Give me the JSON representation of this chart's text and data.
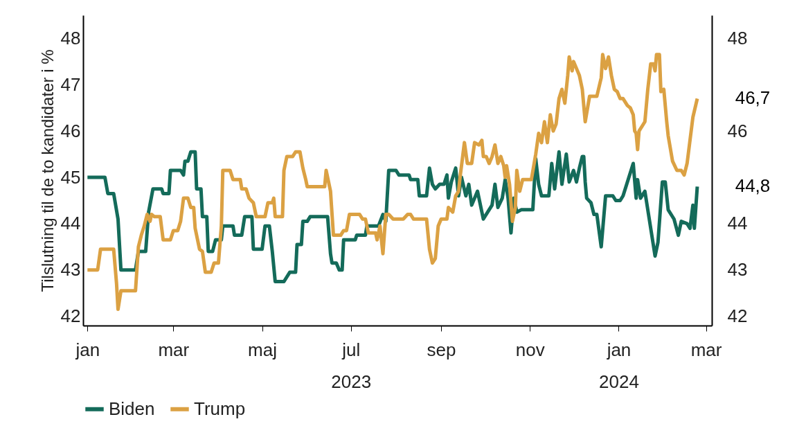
{
  "chart_data": {
    "type": "line",
    "ylabel": "Tilslutning til de to kandidater i %",
    "xlim": [
      "2022-12-29",
      "2024-03-05"
    ],
    "xticks": [
      {
        "value": "2023-01-01",
        "label": "jan"
      },
      {
        "value": "2023-03-01",
        "label": "mar"
      },
      {
        "value": "2023-05-01",
        "label": "maj"
      },
      {
        "value": "2023-07-01",
        "label": "jul\n2023"
      },
      {
        "value": "2023-09-01",
        "label": "sep"
      },
      {
        "value": "2023-11-01",
        "label": "nov"
      },
      {
        "value": "2024-01-01",
        "label": "jan\n2024"
      },
      {
        "value": "2024-03-01",
        "label": "mar"
      }
    ],
    "ylim": [
      41.8,
      48.5
    ],
    "yticks": [
      42,
      43,
      44,
      45,
      46,
      47,
      48
    ],
    "y2lim": [
      41.8,
      48.5
    ],
    "y2ticks": [
      42,
      43,
      44,
      46,
      48
    ],
    "legend": "bottom",
    "line_style": "solid",
    "marker": "none",
    "annotations": [
      {
        "text": "46,7",
        "x": "2024-02-24",
        "y": 46.7
      },
      {
        "text": "44,8",
        "x": "2024-02-24",
        "y": 44.8
      }
    ],
    "series": [
      {
        "name": "Biden",
        "color": "#146b5a",
        "x": [
          "2023-01-01",
          "2023-01-13",
          "2023-01-15",
          "2023-01-19",
          "2023-01-22",
          "2023-01-24",
          "2023-02-03",
          "2023-02-05",
          "2023-02-10",
          "2023-02-12",
          "2023-02-15",
          "2023-02-21",
          "2023-02-22",
          "2023-02-26",
          "2023-02-27",
          "2023-03-06",
          "2023-03-08",
          "2023-03-09",
          "2023-03-11",
          "2023-03-13",
          "2023-03-16",
          "2023-03-17",
          "2023-03-20",
          "2023-03-21",
          "2023-03-24",
          "2023-03-25",
          "2023-03-28",
          "2023-03-30",
          "2023-04-03",
          "2023-04-04",
          "2023-04-11",
          "2023-04-12",
          "2023-04-17",
          "2023-04-19",
          "2023-04-24",
          "2023-04-25",
          "2023-05-01",
          "2023-05-03",
          "2023-05-06",
          "2023-05-08",
          "2023-05-10",
          "2023-05-16",
          "2023-05-18",
          "2023-05-20",
          "2023-05-24",
          "2023-05-25",
          "2023-05-28",
          "2023-05-29",
          "2023-06-01",
          "2023-06-03",
          "2023-06-15",
          "2023-06-17",
          "2023-06-18",
          "2023-06-21",
          "2023-06-23",
          "2023-06-25",
          "2023-06-26",
          "2023-07-04",
          "2023-07-05",
          "2023-07-11",
          "2023-07-12",
          "2023-07-20",
          "2023-07-23",
          "2023-07-25",
          "2023-07-27",
          "2023-08-01",
          "2023-08-03",
          "2023-08-10",
          "2023-08-11",
          "2023-08-16",
          "2023-08-17",
          "2023-08-22",
          "2023-08-24",
          "2023-08-26",
          "2023-08-28",
          "2023-08-31",
          "2023-09-03",
          "2023-09-05",
          "2023-09-06",
          "2023-09-08",
          "2023-09-11",
          "2023-09-13",
          "2023-09-15",
          "2023-09-18",
          "2023-09-20",
          "2023-09-22",
          "2023-09-26",
          "2023-09-30",
          "2023-10-03",
          "2023-10-06",
          "2023-10-08",
          "2023-10-10",
          "2023-10-13",
          "2023-10-15",
          "2023-10-17",
          "2023-10-19",
          "2023-10-21",
          "2023-10-23",
          "2023-10-26",
          "2023-11-03",
          "2023-11-05",
          "2023-11-07",
          "2023-11-09",
          "2023-11-14",
          "2023-11-16",
          "2023-11-18",
          "2023-11-21",
          "2023-11-23",
          "2023-11-26",
          "2023-11-28",
          "2023-12-01",
          "2023-12-03",
          "2023-12-05",
          "2023-12-07",
          "2023-12-08",
          "2023-12-09",
          "2023-12-10",
          "2023-12-13",
          "2023-12-15",
          "2023-12-17",
          "2023-12-20",
          "2023-12-23",
          "2023-12-28",
          "2023-12-30",
          "2024-01-02",
          "2024-01-04",
          "2024-01-11",
          "2024-01-13",
          "2024-01-14",
          "2024-01-16",
          "2024-01-19",
          "2024-01-22",
          "2024-01-26",
          "2024-01-28",
          "2024-01-31",
          "2024-02-02",
          "2024-02-04",
          "2024-02-08",
          "2024-02-11",
          "2024-02-13",
          "2024-02-17",
          "2024-02-19",
          "2024-02-21",
          "2024-02-22",
          "2024-02-23",
          "2024-02-24"
        ],
        "values": [
          45.0,
          45.0,
          44.65,
          44.65,
          44.1,
          43.0,
          43.0,
          43.4,
          43.4,
          44.25,
          44.75,
          44.75,
          44.65,
          44.65,
          45.15,
          45.15,
          45.05,
          45.35,
          45.35,
          45.55,
          45.55,
          44.75,
          44.75,
          44.15,
          44.15,
          43.4,
          43.4,
          43.65,
          43.65,
          43.95,
          43.95,
          43.75,
          43.75,
          44.15,
          44.15,
          43.45,
          43.45,
          43.95,
          43.95,
          43.4,
          42.75,
          42.75,
          42.85,
          42.95,
          42.95,
          43.55,
          43.55,
          44.05,
          44.05,
          44.15,
          44.15,
          43.35,
          43.15,
          43.15,
          43.0,
          43.0,
          43.65,
          43.65,
          43.75,
          43.75,
          43.95,
          43.95,
          44.2,
          44.05,
          45.15,
          45.15,
          45.05,
          45.05,
          44.95,
          44.95,
          44.6,
          44.6,
          45.2,
          44.85,
          44.75,
          44.85,
          44.85,
          45.05,
          44.55,
          44.9,
          45.2,
          44.6,
          45.0,
          44.6,
          44.85,
          44.4,
          44.7,
          44.1,
          44.25,
          44.4,
          44.85,
          44.35,
          44.55,
          44.95,
          44.55,
          43.8,
          44.55,
          44.25,
          44.3,
          44.3,
          45.4,
          44.85,
          44.6,
          44.6,
          45.3,
          44.75,
          45.55,
          44.85,
          45.5,
          44.9,
          45.15,
          44.9,
          45.2,
          45.45,
          45.45,
          44.9,
          44.55,
          44.45,
          44.2,
          44.2,
          43.5,
          44.6,
          44.6,
          44.5,
          44.5,
          44.6,
          45.3,
          44.55,
          44.95,
          44.55,
          44.7,
          44.1,
          43.3,
          43.6,
          44.9,
          44.9,
          44.3,
          44.1,
          43.75,
          44.05,
          44.0,
          43.9,
          44.4,
          43.9,
          44.35,
          44.8
        ]
      },
      {
        "name": "Trump",
        "color": "#dba143",
        "x": [
          "2023-01-01",
          "2023-01-08",
          "2023-01-10",
          "2023-01-19",
          "2023-01-21",
          "2023-01-22",
          "2023-01-24",
          "2023-02-03",
          "2023-02-05",
          "2023-02-07",
          "2023-02-09",
          "2023-02-11",
          "2023-02-13",
          "2023-02-14",
          "2023-02-16",
          "2023-02-20",
          "2023-02-22",
          "2023-02-27",
          "2023-03-01",
          "2023-03-04",
          "2023-03-06",
          "2023-03-08",
          "2023-03-11",
          "2023-03-13",
          "2023-03-15",
          "2023-03-16",
          "2023-03-19",
          "2023-03-21",
          "2023-03-23",
          "2023-03-27",
          "2023-03-29",
          "2023-04-01",
          "2023-04-03",
          "2023-04-04",
          "2023-04-09",
          "2023-04-11",
          "2023-04-16",
          "2023-04-17",
          "2023-04-20",
          "2023-04-22",
          "2023-04-25",
          "2023-04-27",
          "2023-05-03",
          "2023-05-05",
          "2023-05-08",
          "2023-05-09",
          "2023-05-10",
          "2023-05-15",
          "2023-05-16",
          "2023-05-18",
          "2023-05-22",
          "2023-05-24",
          "2023-05-27",
          "2023-05-29",
          "2023-05-31",
          "2023-06-01",
          "2023-06-13",
          "2023-06-14",
          "2023-06-17",
          "2023-06-19",
          "2023-06-24",
          "2023-06-26",
          "2023-06-28",
          "2023-06-30",
          "2023-07-07",
          "2023-07-09",
          "2023-07-11",
          "2023-07-13",
          "2023-07-18",
          "2023-07-19",
          "2023-07-21",
          "2023-07-23",
          "2023-07-25",
          "2023-07-27",
          "2023-07-30",
          "2023-08-06",
          "2023-08-09",
          "2023-08-11",
          "2023-08-13",
          "2023-08-22",
          "2023-08-24",
          "2023-08-26",
          "2023-08-28",
          "2023-08-30",
          "2023-09-01",
          "2023-09-05",
          "2023-09-06",
          "2023-09-09",
          "2023-09-11",
          "2023-09-13",
          "2023-09-14",
          "2023-09-17",
          "2023-09-19",
          "2023-09-22",
          "2023-09-24",
          "2023-09-27",
          "2023-09-29",
          "2023-09-30",
          "2023-10-02",
          "2023-10-04",
          "2023-10-06",
          "2023-10-08",
          "2023-10-10",
          "2023-10-12",
          "2023-10-14",
          "2023-10-15",
          "2023-10-16",
          "2023-10-18",
          "2023-10-20",
          "2023-10-22",
          "2023-10-23",
          "2023-10-25",
          "2023-10-27",
          "2023-11-02",
          "2023-11-05",
          "2023-11-07",
          "2023-11-09",
          "2023-11-11",
          "2023-11-13",
          "2023-11-15",
          "2023-11-17",
          "2023-11-19",
          "2023-11-21",
          "2023-11-23",
          "2023-11-25",
          "2023-11-27",
          "2023-11-28",
          "2023-11-30",
          "2023-12-01",
          "2023-12-03",
          "2023-12-05",
          "2023-12-07",
          "2023-12-09",
          "2023-12-12",
          "2023-12-17",
          "2023-12-20",
          "2023-12-21",
          "2023-12-23",
          "2023-12-25",
          "2023-12-27",
          "2023-12-29",
          "2023-12-31",
          "2024-01-02",
          "2024-01-04",
          "2024-01-07",
          "2024-01-09",
          "2024-01-11",
          "2024-01-12",
          "2024-01-13",
          "2024-01-14",
          "2024-01-15",
          "2024-01-17",
          "2024-01-19",
          "2024-01-21",
          "2024-01-23",
          "2024-01-25",
          "2024-01-26",
          "2024-01-27",
          "2024-01-29",
          "2024-01-30",
          "2024-02-01",
          "2024-02-03",
          "2024-02-04",
          "2024-02-07",
          "2024-02-10",
          "2024-02-13",
          "2024-02-15",
          "2024-02-17",
          "2024-02-19",
          "2024-02-21",
          "2024-02-24"
        ],
        "values": [
          43.0,
          43.0,
          43.45,
          43.45,
          42.7,
          42.15,
          42.55,
          42.55,
          43.5,
          43.75,
          43.95,
          44.2,
          44.05,
          44.2,
          44.15,
          44.15,
          43.65,
          43.65,
          43.85,
          43.85,
          44.05,
          44.55,
          44.55,
          44.35,
          44.35,
          43.9,
          43.45,
          43.4,
          42.95,
          42.95,
          43.15,
          43.15,
          43.95,
          45.15,
          45.15,
          44.95,
          44.95,
          44.75,
          44.75,
          44.55,
          44.45,
          44.15,
          44.15,
          44.45,
          44.45,
          44.55,
          44.15,
          44.15,
          45.15,
          45.45,
          45.45,
          45.55,
          45.55,
          45.2,
          44.95,
          44.8,
          44.8,
          45.15,
          44.7,
          43.75,
          43.75,
          43.85,
          43.85,
          44.2,
          44.2,
          44.1,
          44.1,
          43.8,
          43.8,
          43.65,
          43.95,
          43.35,
          44.2,
          44.2,
          44.1,
          44.1,
          44.2,
          44.2,
          44.1,
          44.1,
          43.45,
          43.15,
          43.25,
          43.95,
          44.1,
          44.1,
          44.35,
          44.25,
          44.6,
          44.7,
          45.0,
          45.75,
          45.3,
          45.3,
          45.75,
          45.7,
          45.8,
          45.45,
          45.45,
          45.3,
          45.45,
          45.7,
          45.3,
          45.45,
          45.25,
          45.0,
          45.25,
          44.85,
          44.05,
          44.35,
          45.15,
          44.7,
          44.95,
          44.95,
          45.5,
          45.95,
          45.75,
          46.2,
          45.75,
          46.35,
          46.0,
          46.15,
          46.7,
          46.9,
          46.6,
          47.2,
          47.6,
          47.3,
          47.5,
          47.35,
          47.2,
          46.9,
          46.2,
          46.75,
          46.75,
          47.15,
          47.65,
          47.35,
          47.6,
          47.2,
          46.9,
          46.85,
          46.7,
          46.7,
          46.55,
          46.5,
          46.35,
          46.0,
          45.95,
          45.6,
          46.0,
          46.1,
          46.2,
          46.9,
          47.45,
          47.45,
          47.3,
          47.65,
          47.65,
          46.85,
          46.9,
          46.2,
          45.9,
          45.35,
          45.15,
          45.15,
          45.05,
          45.3,
          45.8,
          46.3,
          46.7
        ]
      }
    ]
  }
}
